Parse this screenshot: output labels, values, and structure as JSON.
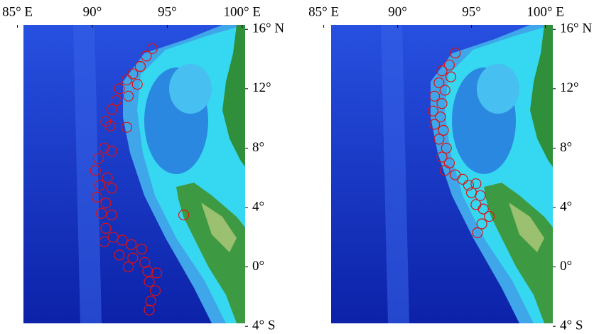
{
  "maps": [
    {
      "xlim": [
        85.4,
        100.2
      ],
      "ylim": [
        -3.8,
        16.3
      ],
      "xticks": [
        {
          "value": 85,
          "label": "85° E"
        },
        {
          "value": 90,
          "label": "90°"
        },
        {
          "value": 95,
          "label": "95°"
        },
        {
          "value": 100,
          "label": "100° E"
        }
      ],
      "yticks": [
        {
          "value": 16,
          "label": "16° N"
        },
        {
          "value": 12,
          "label": "12°"
        },
        {
          "value": 8,
          "label": "8°"
        },
        {
          "value": 4,
          "label": "4°"
        },
        {
          "value": 0,
          "label": "0°"
        },
        {
          "value": -4,
          "label": "4° S"
        }
      ],
      "events": [
        {
          "lon": 94.0,
          "lat": 14.7
        },
        {
          "lon": 93.6,
          "lat": 14.2
        },
        {
          "lon": 93.2,
          "lat": 13.5
        },
        {
          "lon": 92.7,
          "lat": 13.0
        },
        {
          "lon": 92.3,
          "lat": 12.6
        },
        {
          "lon": 93.0,
          "lat": 12.3
        },
        {
          "lon": 91.8,
          "lat": 12.0
        },
        {
          "lon": 92.4,
          "lat": 11.5
        },
        {
          "lon": 91.6,
          "lat": 11.2
        },
        {
          "lon": 91.3,
          "lat": 10.6
        },
        {
          "lon": 90.9,
          "lat": 9.8
        },
        {
          "lon": 91.2,
          "lat": 9.5
        },
        {
          "lon": 92.3,
          "lat": 9.4
        },
        {
          "lon": 90.8,
          "lat": 8.0
        },
        {
          "lon": 91.3,
          "lat": 7.8
        },
        {
          "lon": 90.4,
          "lat": 7.3
        },
        {
          "lon": 90.2,
          "lat": 6.5
        },
        {
          "lon": 91.0,
          "lat": 6.0
        },
        {
          "lon": 90.5,
          "lat": 5.5
        },
        {
          "lon": 91.3,
          "lat": 5.3
        },
        {
          "lon": 90.3,
          "lat": 4.7
        },
        {
          "lon": 90.9,
          "lat": 4.3
        },
        {
          "lon": 90.6,
          "lat": 3.6
        },
        {
          "lon": 91.3,
          "lat": 3.5
        },
        {
          "lon": 90.9,
          "lat": 2.6
        },
        {
          "lon": 91.4,
          "lat": 2.0
        },
        {
          "lon": 90.8,
          "lat": 1.7
        },
        {
          "lon": 92.0,
          "lat": 1.8
        },
        {
          "lon": 92.6,
          "lat": 1.5
        },
        {
          "lon": 93.3,
          "lat": 1.2
        },
        {
          "lon": 91.8,
          "lat": 0.8
        },
        {
          "lon": 92.7,
          "lat": 0.6
        },
        {
          "lon": 93.5,
          "lat": 0.3
        },
        {
          "lon": 92.4,
          "lat": 0.0
        },
        {
          "lon": 93.7,
          "lat": -0.3
        },
        {
          "lon": 94.3,
          "lat": -0.4
        },
        {
          "lon": 93.8,
          "lat": -1.0
        },
        {
          "lon": 94.2,
          "lat": -1.6
        },
        {
          "lon": 93.9,
          "lat": -2.3
        },
        {
          "lon": 93.8,
          "lat": -2.9
        },
        {
          "lon": 96.1,
          "lat": 3.5
        }
      ]
    },
    {
      "xlim": [
        85.5,
        100.5
      ],
      "ylim": [
        -3.8,
        16.3
      ],
      "xticks": [
        {
          "value": 85,
          "label": "85° E"
        },
        {
          "value": 90,
          "label": "90°"
        },
        {
          "value": 95,
          "label": "95°"
        },
        {
          "value": 100,
          "label": "100° E"
        }
      ],
      "yticks": [
        {
          "value": 16,
          "label": "16° N"
        },
        {
          "value": 12,
          "label": "12°"
        },
        {
          "value": 8,
          "label": "8°"
        },
        {
          "value": 4,
          "label": "4°"
        },
        {
          "value": 0,
          "label": "0°"
        },
        {
          "value": -4,
          "label": "4° S"
        }
      ],
      "events": [
        {
          "lon": 93.9,
          "lat": 14.4
        },
        {
          "lon": 93.5,
          "lat": 13.6
        },
        {
          "lon": 93.0,
          "lat": 13.2
        },
        {
          "lon": 93.6,
          "lat": 12.8
        },
        {
          "lon": 92.8,
          "lat": 12.4
        },
        {
          "lon": 93.2,
          "lat": 11.9
        },
        {
          "lon": 92.5,
          "lat": 11.5
        },
        {
          "lon": 93.0,
          "lat": 11.0
        },
        {
          "lon": 92.4,
          "lat": 10.5
        },
        {
          "lon": 92.9,
          "lat": 10.1
        },
        {
          "lon": 92.5,
          "lat": 9.6
        },
        {
          "lon": 93.1,
          "lat": 9.2
        },
        {
          "lon": 92.8,
          "lat": 8.6
        },
        {
          "lon": 93.3,
          "lat": 8.0
        },
        {
          "lon": 93.0,
          "lat": 7.4
        },
        {
          "lon": 93.5,
          "lat": 7.0
        },
        {
          "lon": 93.2,
          "lat": 6.5
        },
        {
          "lon": 93.9,
          "lat": 6.2
        },
        {
          "lon": 94.4,
          "lat": 5.9
        },
        {
          "lon": 94.8,
          "lat": 5.5
        },
        {
          "lon": 95.3,
          "lat": 5.6
        },
        {
          "lon": 95.0,
          "lat": 5.0
        },
        {
          "lon": 95.6,
          "lat": 4.8
        },
        {
          "lon": 95.3,
          "lat": 4.2
        },
        {
          "lon": 95.8,
          "lat": 3.9
        },
        {
          "lon": 96.2,
          "lat": 3.4
        },
        {
          "lon": 95.7,
          "lat": 2.9
        },
        {
          "lon": 95.4,
          "lat": 2.3
        }
      ]
    }
  ]
}
